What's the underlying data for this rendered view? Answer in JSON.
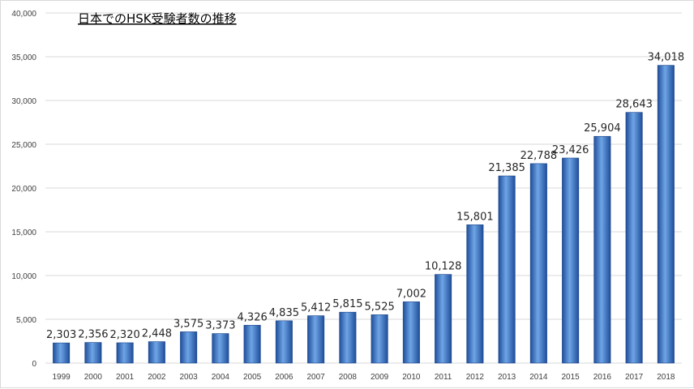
{
  "chart_data": {
    "type": "bar",
    "title": "日本でのHSK受験者数の推移",
    "categories": [
      "1999",
      "2000",
      "2001",
      "2002",
      "2003",
      "2004",
      "2005",
      "2006",
      "2007",
      "2008",
      "2009",
      "2010",
      "2011",
      "2012",
      "2013",
      "2014",
      "2015",
      "2016",
      "2017",
      "2018"
    ],
    "values": [
      2303,
      2356,
      2320,
      2448,
      3575,
      3373,
      4326,
      4835,
      5412,
      5815,
      5525,
      7002,
      10128,
      15801,
      21385,
      22788,
      23426,
      25904,
      28643,
      34018
    ],
    "value_labels": [
      "2,303",
      "2,356",
      "2,320",
      "2,448",
      "3,575",
      "3,373",
      "4,326",
      "4,835",
      "5,412",
      "5,815",
      "5,525",
      "7,002",
      "10,128",
      "15,801",
      "21,385",
      "22,788",
      "23,426",
      "25,904",
      "28,643",
      "34,018"
    ],
    "yticks": [
      0,
      5000,
      10000,
      15000,
      20000,
      25000,
      30000,
      35000,
      40000
    ],
    "ytick_labels": [
      "0",
      "5,000",
      "10,000",
      "15,000",
      "20,000",
      "25,000",
      "30,000",
      "35,000",
      "40,000"
    ],
    "ylim": [
      0,
      40000
    ],
    "xlabel": "",
    "ylabel": "",
    "grid": true,
    "legend": "none",
    "colors": {
      "bar_dark": "#1f4e9a",
      "bar_mid": "#3f7fd0",
      "bar_light": "#6fa5e6",
      "grid": "#d9d9d9"
    }
  }
}
